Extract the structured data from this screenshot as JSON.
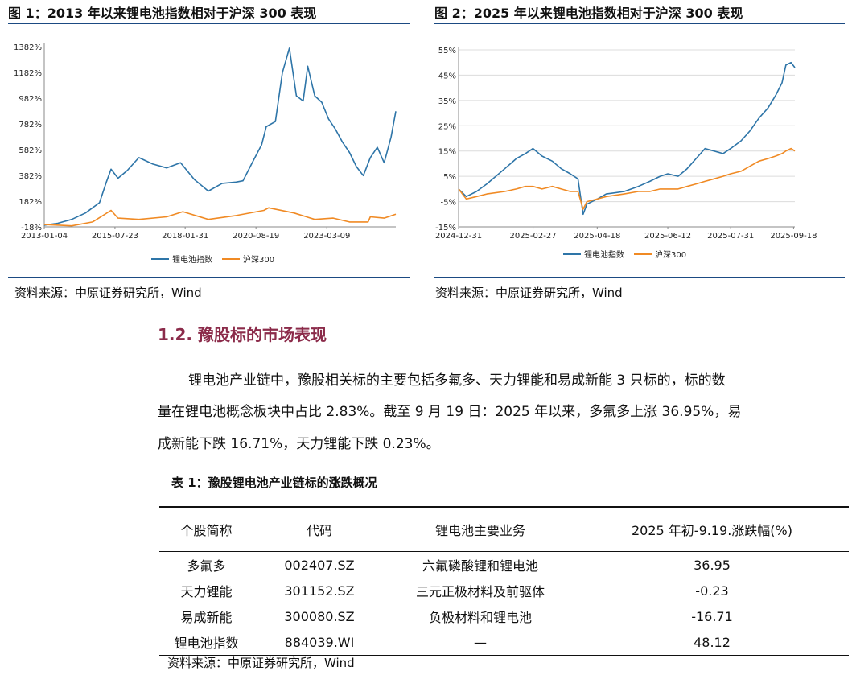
{
  "figures": [
    {
      "title": "图 1：2013 年以来锂电池指数相对于沪深 300 表现",
      "source": "资料来源：中原证券研究所，Wind"
    },
    {
      "title": "图 2：2025 年以来锂电池指数相对于沪深 300 表现",
      "source": "资料来源：中原证券研究所，Wind"
    }
  ],
  "chart_data": [
    {
      "type": "line",
      "y_ticks": [
        "1382%",
        "1182%",
        "982%",
        "782%",
        "582%",
        "382%",
        "182%",
        "-18%"
      ],
      "y_tick_values": [
        1382,
        1182,
        982,
        782,
        582,
        382,
        182,
        -18
      ],
      "ylim": [
        -18,
        1382
      ],
      "x_ticks": [
        "2013-01-04",
        "2015-07-23",
        "2018-01-31",
        "2020-08-19",
        "2023-03-09"
      ],
      "grid": false,
      "legend_position": "bottom",
      "series": [
        {
          "name": "锂电池指数",
          "color": "#2e75a8",
          "x": [
            "2013-01",
            "2013-07",
            "2014-01",
            "2014-07",
            "2015-01",
            "2015-04",
            "2015-06",
            "2015-09",
            "2016-01",
            "2016-06",
            "2016-12",
            "2017-06",
            "2017-12",
            "2018-06",
            "2018-12",
            "2019-06",
            "2019-12",
            "2020-03",
            "2020-07",
            "2020-11",
            "2021-01",
            "2021-05",
            "2021-08",
            "2021-11",
            "2022-02",
            "2022-05",
            "2022-07",
            "2022-10",
            "2023-01",
            "2023-04",
            "2023-07",
            "2023-10",
            "2024-01",
            "2024-04",
            "2024-07",
            "2024-10",
            "2025-01",
            "2025-04",
            "2025-07",
            "2025-09"
          ],
          "values": [
            -5,
            10,
            40,
            90,
            170,
            330,
            430,
            360,
            420,
            520,
            470,
            440,
            480,
            350,
            260,
            320,
            330,
            340,
            480,
            620,
            760,
            800,
            1180,
            1370,
            1000,
            960,
            1230,
            1000,
            950,
            820,
            740,
            640,
            560,
            450,
            380,
            520,
            600,
            480,
            680,
            880
          ]
        },
        {
          "name": "沪深300",
          "color": "#f08a24",
          "x": [
            "2013-01",
            "2014-01",
            "2014-10",
            "2015-06",
            "2015-09",
            "2016-06",
            "2017-06",
            "2018-01",
            "2018-12",
            "2019-12",
            "2020-12",
            "2021-02",
            "2022-01",
            "2022-10",
            "2023-06",
            "2024-01",
            "2024-09",
            "2024-10",
            "2025-04",
            "2025-09"
          ],
          "values": [
            0,
            -10,
            20,
            110,
            50,
            40,
            60,
            100,
            40,
            70,
            110,
            130,
            90,
            40,
            50,
            20,
            20,
            60,
            50,
            80
          ]
        }
      ]
    },
    {
      "type": "line",
      "y_ticks": [
        "55%",
        "45%",
        "35%",
        "25%",
        "15%",
        "5%",
        "-5%",
        "-15%"
      ],
      "y_tick_values": [
        55,
        45,
        35,
        25,
        15,
        5,
        -5,
        -15
      ],
      "ylim": [
        -15,
        55
      ],
      "x_ticks": [
        "2024-12-31",
        "2025-02-27",
        "2025-04-18",
        "2025-06-12",
        "2025-07-31",
        "2025-09-18"
      ],
      "grid": true,
      "legend_position": "bottom",
      "series": [
        {
          "name": "锂电池指数",
          "color": "#2e75a8",
          "x": [
            "2024-12-31",
            "2025-01-06",
            "2025-01-14",
            "2025-01-22",
            "2025-02-05",
            "2025-02-14",
            "2025-02-21",
            "2025-02-27",
            "2025-03-06",
            "2025-03-14",
            "2025-03-21",
            "2025-03-28",
            "2025-04-03",
            "2025-04-07",
            "2025-04-10",
            "2025-04-18",
            "2025-04-25",
            "2025-05-09",
            "2025-05-20",
            "2025-05-29",
            "2025-06-06",
            "2025-06-12",
            "2025-06-20",
            "2025-06-27",
            "2025-07-04",
            "2025-07-11",
            "2025-07-18",
            "2025-07-25",
            "2025-07-31",
            "2025-08-08",
            "2025-08-15",
            "2025-08-22",
            "2025-08-29",
            "2025-09-04",
            "2025-09-09",
            "2025-09-12",
            "2025-09-16",
            "2025-09-19"
          ],
          "values": [
            0,
            -3,
            -1,
            2,
            8,
            12,
            14,
            16,
            13,
            11,
            8,
            6,
            4,
            -10,
            -6,
            -4,
            -2,
            -1,
            1,
            3,
            5,
            6,
            5,
            8,
            12,
            16,
            15,
            14,
            16,
            19,
            23,
            28,
            32,
            37,
            42,
            49,
            50,
            48
          ]
        },
        {
          "name": "沪深300",
          "color": "#f08a24",
          "x": [
            "2024-12-31",
            "2025-01-06",
            "2025-01-14",
            "2025-01-22",
            "2025-02-05",
            "2025-02-14",
            "2025-02-21",
            "2025-02-27",
            "2025-03-06",
            "2025-03-14",
            "2025-03-21",
            "2025-03-28",
            "2025-04-03",
            "2025-04-07",
            "2025-04-10",
            "2025-04-18",
            "2025-04-25",
            "2025-05-09",
            "2025-05-20",
            "2025-05-29",
            "2025-06-06",
            "2025-06-12",
            "2025-06-20",
            "2025-06-27",
            "2025-07-04",
            "2025-07-11",
            "2025-07-18",
            "2025-07-25",
            "2025-07-31",
            "2025-08-08",
            "2025-08-15",
            "2025-08-22",
            "2025-08-29",
            "2025-09-04",
            "2025-09-09",
            "2025-09-12",
            "2025-09-16",
            "2025-09-19"
          ],
          "values": [
            0,
            -4,
            -3,
            -2,
            -1,
            0,
            1,
            1,
            0,
            1,
            0,
            -1,
            -1,
            -8,
            -5,
            -4,
            -3,
            -2,
            -1,
            -1,
            0,
            0,
            0,
            1,
            2,
            3,
            4,
            5,
            6,
            7,
            9,
            11,
            12,
            13,
            14,
            15,
            16,
            15
          ]
        }
      ]
    }
  ],
  "section": {
    "heading": "1.2. 豫股标的市场表现",
    "paragraph_lines": [
      "锂电池产业链中，豫股相关标的主要包括多氟多、天力锂能和易成新能 3 只标的，标的数",
      "量在锂电池概念板块中占比 2.83%。截至 9 月 19 日：2025 年以来，多氟多上涨 36.95%，易",
      "成新能下跌 16.71%，天力锂能下跌 0.23%。"
    ]
  },
  "table": {
    "title": "表 1：豫股锂电池产业链标的涨跌概况",
    "headers": [
      "个股简称",
      "代码",
      "锂电池主要业务",
      "2025 年初-9.19.涨跌幅(%)"
    ],
    "rows": [
      [
        "多氟多",
        "002407.SZ",
        "六氟磷酸锂和锂电池",
        "36.95"
      ],
      [
        "天力锂能",
        "301152.SZ",
        "三元正极材料及前驱体",
        "-0.23"
      ],
      [
        "易成新能",
        "300080.SZ",
        "负极材料和锂电池",
        "-16.71"
      ],
      [
        "锂电池指数",
        "884039.WI",
        "—",
        "48.12"
      ]
    ],
    "source": "资料来源：中原证券研究所，Wind"
  }
}
